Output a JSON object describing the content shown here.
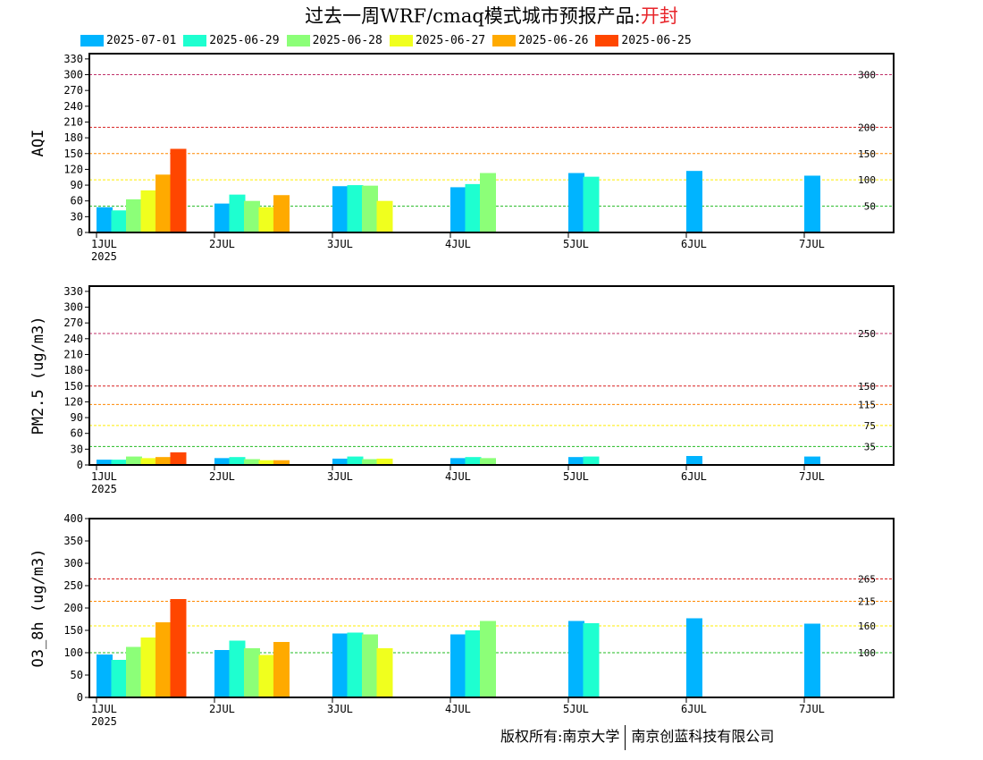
{
  "title": {
    "text": "过去一周WRF/cmaq模式城市预报产品:",
    "city": "开封"
  },
  "copyright": {
    "left": "版权所有:南京大学",
    "right": "南京创蓝科技有限公司"
  },
  "legend": [
    {
      "label": "2025-07-01",
      "color": "#00b4ff"
    },
    {
      "label": "2025-06-29",
      "color": "#1effd0"
    },
    {
      "label": "2025-06-28",
      "color": "#8cff78"
    },
    {
      "label": "2025-06-27",
      "color": "#f0ff1e"
    },
    {
      "label": "2025-06-26",
      "color": "#ffaa00"
    },
    {
      "label": "2025-06-25",
      "color": "#ff4600"
    }
  ],
  "chart_data": [
    {
      "type": "bar",
      "ylabel": "AQI",
      "ylim": [
        0,
        340
      ],
      "yticks": [
        0,
        30,
        60,
        90,
        120,
        150,
        180,
        210,
        240,
        270,
        300,
        330
      ],
      "categories": [
        "1JUL",
        "2JUL",
        "3JUL",
        "4JUL",
        "5JUL",
        "6JUL",
        "7JUL"
      ],
      "first_label_year": "2025",
      "grid": false,
      "thresholds": [
        {
          "value": 300,
          "label": "300",
          "color": "#c0306a"
        },
        {
          "value": 200,
          "label": "200",
          "color": "#d82020"
        },
        {
          "value": 150,
          "label": "150",
          "color": "#ff8800"
        },
        {
          "value": 100,
          "label": "100",
          "color": "#ffee00"
        },
        {
          "value": 50,
          "label": "50",
          "color": "#22bb22"
        }
      ],
      "series": [
        {
          "values": [
            48,
            55,
            88,
            86,
            113,
            117,
            108
          ]
        },
        {
          "values": [
            42,
            72,
            90,
            92,
            106,
            null,
            null
          ]
        },
        {
          "values": [
            63,
            60,
            89,
            113,
            null,
            null,
            null
          ]
        },
        {
          "values": [
            80,
            48,
            60,
            null,
            null,
            null,
            null
          ]
        },
        {
          "values": [
            110,
            71,
            null,
            null,
            null,
            null,
            null
          ]
        },
        {
          "values": [
            159,
            null,
            null,
            null,
            null,
            null,
            null
          ]
        }
      ]
    },
    {
      "type": "bar",
      "ylabel": "PM2.5 (ug/m3)",
      "ylim": [
        0,
        340
      ],
      "yticks": [
        0,
        30,
        60,
        90,
        120,
        150,
        180,
        210,
        240,
        270,
        300,
        330
      ],
      "categories": [
        "1JUL",
        "2JUL",
        "3JUL",
        "4JUL",
        "5JUL",
        "6JUL",
        "7JUL"
      ],
      "first_label_year": "2025",
      "grid": false,
      "thresholds": [
        {
          "value": 250,
          "label": "250",
          "color": "#c0306a"
        },
        {
          "value": 150,
          "label": "150",
          "color": "#d82020"
        },
        {
          "value": 115,
          "label": "115",
          "color": "#ff8800"
        },
        {
          "value": 75,
          "label": "75",
          "color": "#ffee00"
        },
        {
          "value": 35,
          "label": "35",
          "color": "#22bb22"
        }
      ],
      "series": [
        {
          "values": [
            10,
            13,
            12,
            13,
            15,
            17,
            16
          ]
        },
        {
          "values": [
            10,
            15,
            16,
            15,
            16,
            null,
            null
          ]
        },
        {
          "values": [
            16,
            11,
            11,
            13,
            null,
            null,
            null
          ]
        },
        {
          "values": [
            13,
            9,
            12,
            null,
            null,
            null,
            null
          ]
        },
        {
          "values": [
            15,
            9,
            null,
            null,
            null,
            null,
            null
          ]
        },
        {
          "values": [
            24,
            null,
            null,
            null,
            null,
            null,
            null
          ]
        }
      ]
    },
    {
      "type": "bar",
      "ylabel": "O3_8h (ug/m3)",
      "ylim": [
        0,
        400
      ],
      "yticks": [
        0,
        50,
        100,
        150,
        200,
        250,
        300,
        350,
        400
      ],
      "categories": [
        "1JUL",
        "2JUL",
        "3JUL",
        "4JUL",
        "5JUL",
        "6JUL",
        "7JUL"
      ],
      "first_label_year": "2025",
      "grid": false,
      "thresholds": [
        {
          "value": 265,
          "label": "265",
          "color": "#d82020"
        },
        {
          "value": 215,
          "label": "215",
          "color": "#ff8800"
        },
        {
          "value": 160,
          "label": "160",
          "color": "#ffee00"
        },
        {
          "value": 100,
          "label": "100",
          "color": "#22bb22"
        }
      ],
      "series": [
        {
          "values": [
            96,
            106,
            143,
            141,
            171,
            177,
            165
          ]
        },
        {
          "values": [
            84,
            127,
            145,
            150,
            166,
            null,
            null
          ]
        },
        {
          "values": [
            113,
            110,
            141,
            171,
            null,
            null,
            null
          ]
        },
        {
          "values": [
            134,
            95,
            110,
            null,
            null,
            null,
            null
          ]
        },
        {
          "values": [
            168,
            124,
            null,
            null,
            null,
            null,
            null
          ]
        },
        {
          "values": [
            220,
            null,
            null,
            null,
            null,
            null,
            null
          ]
        }
      ]
    }
  ]
}
